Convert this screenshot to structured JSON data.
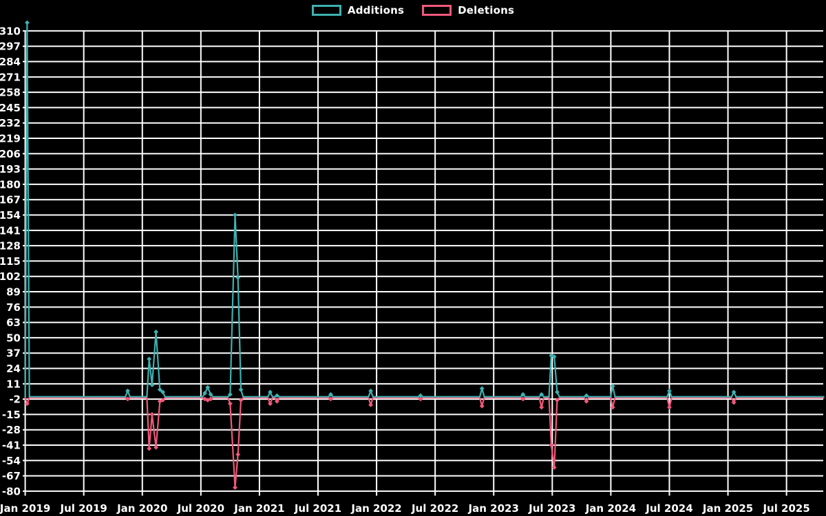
{
  "legend": {
    "items": [
      {
        "label": "Additions"
      },
      {
        "label": "Deletions"
      }
    ]
  },
  "chart_data": {
    "type": "line",
    "title": "",
    "background_color": "#000000",
    "grid_color": "#ffffff",
    "text_color": "#ffffff",
    "grid": true,
    "legend_position": "top-center",
    "series": [
      {
        "name": "Additions",
        "color": "#3fb1b1"
      },
      {
        "name": "Deletions",
        "color": "#f2597a"
      }
    ],
    "x_axis": {
      "labels": [
        "Jan 2019",
        "Jul 2019",
        "Jan 2020",
        "Jul 2020",
        "Jan 2021",
        "Jul 2021",
        "Jan 2022",
        "Jul 2022",
        "Jan 2023",
        "Jul 2023",
        "Jan 2024",
        "Jul 2024",
        "Jan 2025",
        "Jul 2025"
      ],
      "unit": "months_since_jan_2019",
      "range_months": [
        0,
        81.8
      ]
    },
    "y_axis": {
      "ticks": [
        310,
        297,
        284,
        271,
        258,
        245,
        232,
        219,
        206,
        193,
        180,
        167,
        154,
        141,
        128,
        115,
        102,
        89,
        76,
        63,
        50,
        37,
        24,
        11,
        -2,
        -15,
        -28,
        -41,
        -54,
        -67,
        -80
      ],
      "min": -80,
      "max": 317
    },
    "baseline_value": 0,
    "note": "weekly additions/deletions; value 0 everywhere except listed events (m = months since Jan 2019)",
    "events": [
      {
        "m": 0.2,
        "additions": 317,
        "deletions": -5
      },
      {
        "m": 10.5,
        "additions": 5,
        "deletions": -1
      },
      {
        "m": 12.7,
        "additions": 32,
        "deletions": -43
      },
      {
        "m": 13.0,
        "additions": 10,
        "deletions": -14
      },
      {
        "m": 13.4,
        "additions": 55,
        "deletions": -42
      },
      {
        "m": 13.8,
        "additions": 6,
        "deletions": -3
      },
      {
        "m": 14.1,
        "additions": 4,
        "deletions": -2
      },
      {
        "m": 18.4,
        "additions": 3,
        "deletions": -1
      },
      {
        "m": 18.7,
        "additions": 8,
        "deletions": -2
      },
      {
        "m": 19.0,
        "additions": 2,
        "deletions": -1
      },
      {
        "m": 21.0,
        "additions": 2,
        "deletions": -5
      },
      {
        "m": 21.5,
        "additions": 154,
        "deletions": -76
      },
      {
        "m": 21.8,
        "additions": 101,
        "deletions": -48
      },
      {
        "m": 22.1,
        "additions": 6,
        "deletions": -2
      },
      {
        "m": 25.1,
        "additions": 4,
        "deletions": -5
      },
      {
        "m": 25.8,
        "additions": 1,
        "deletions": -3
      },
      {
        "m": 31.3,
        "additions": 2,
        "deletions": -1
      },
      {
        "m": 35.4,
        "additions": 5,
        "deletions": -6
      },
      {
        "m": 40.5,
        "additions": 1,
        "deletions": -1
      },
      {
        "m": 46.8,
        "additions": 7,
        "deletions": -7
      },
      {
        "m": 51.0,
        "additions": 2,
        "deletions": -1
      },
      {
        "m": 52.9,
        "additions": 2,
        "deletions": -8
      },
      {
        "m": 53.9,
        "additions": 35,
        "deletions": -40
      },
      {
        "m": 54.2,
        "additions": 34,
        "deletions": -59
      },
      {
        "m": 54.5,
        "additions": 4,
        "deletions": -2
      },
      {
        "m": 57.5,
        "additions": 1,
        "deletions": -3
      },
      {
        "m": 60.2,
        "additions": 9,
        "deletions": -8
      },
      {
        "m": 66.0,
        "additions": 5,
        "deletions": -8
      },
      {
        "m": 72.6,
        "additions": 4,
        "deletions": -4
      }
    ]
  }
}
